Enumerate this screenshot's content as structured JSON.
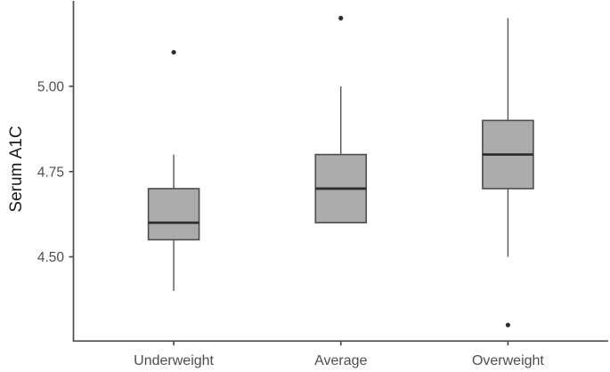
{
  "chart_data": {
    "type": "boxplot",
    "title": "",
    "xlabel": "",
    "ylabel": "Serum A1C",
    "categories": [
      "Underweight",
      "Average",
      "Overweight"
    ],
    "y_ticks": [
      "4.50",
      "4.75",
      "5.00"
    ],
    "y_tick_values": [
      4.5,
      4.75,
      5.0
    ],
    "ylim": [
      4.253,
      5.248
    ],
    "grid": "off",
    "legend": "none",
    "series": [
      {
        "category": "Underweight",
        "whisker_low": 4.4,
        "q1": 4.55,
        "median": 4.6,
        "q3": 4.7,
        "whisker_high": 4.8,
        "outliers": [
          5.1
        ]
      },
      {
        "category": "Average",
        "whisker_low": 4.6,
        "q1": 4.6,
        "median": 4.7,
        "q3": 4.8,
        "whisker_high": 5.0,
        "outliers": [
          5.2
        ]
      },
      {
        "category": "Overweight",
        "whisker_low": 4.5,
        "q1": 4.7,
        "median": 4.8,
        "q3": 4.9,
        "whisker_high": 5.2,
        "outliers": [
          4.3
        ]
      }
    ],
    "style": {
      "background": "#ffffff",
      "box_fill": "#ababab",
      "box_stroke": "#4d4d4d",
      "median_color": "#2e2e2e",
      "whisker_color": "#545454",
      "outlier_color": "#2e2e2e",
      "axis_color": "#4d4d4d",
      "tick_text_color": "#4d4d4d",
      "axis_title_color": "#1a1a1a"
    }
  }
}
